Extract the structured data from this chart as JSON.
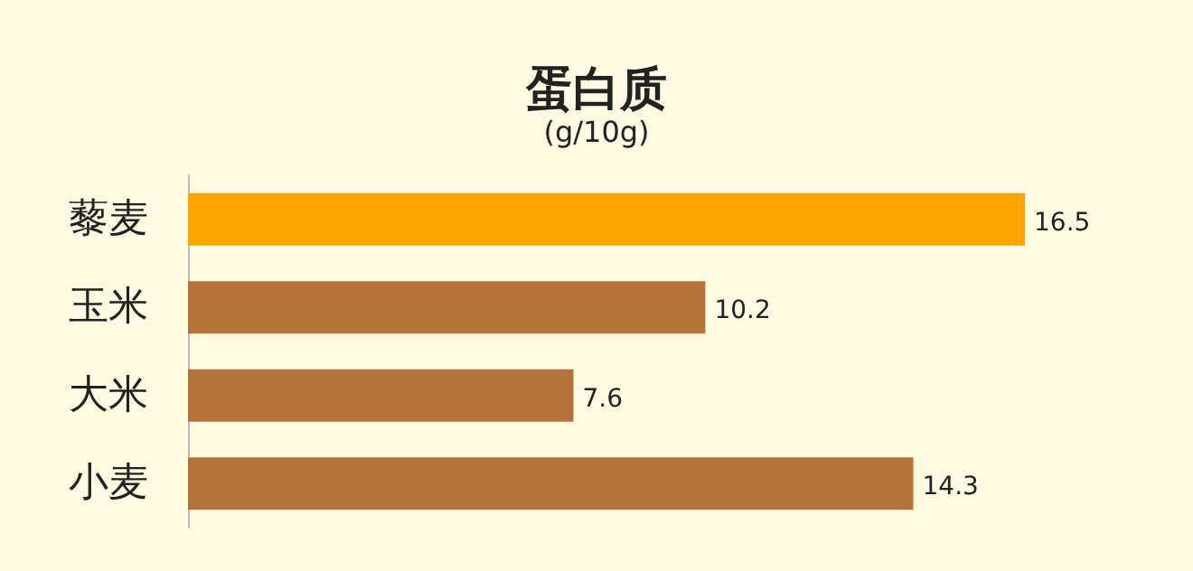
{
  "chart_data": {
    "type": "bar",
    "orientation": "horizontal",
    "title": "蛋白质",
    "subtitle": "(g/10g)",
    "categories": [
      "藜麦",
      "玉米",
      "大米",
      "小麦"
    ],
    "values": [
      16.5,
      10.2,
      7.6,
      14.3
    ],
    "colors": [
      "#ffa500",
      "#b5733c",
      "#b5733c",
      "#b5733c"
    ],
    "data_labels": true
  }
}
